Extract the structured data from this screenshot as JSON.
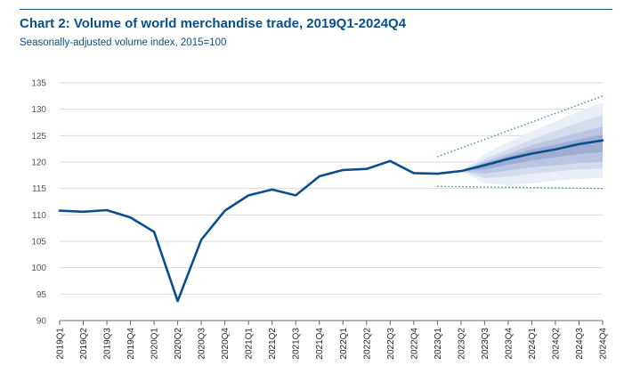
{
  "chart_data": {
    "type": "line",
    "title": "Chart 2: Volume of world merchandise trade, 2019Q1-2024Q4",
    "subtitle": "Seasonally-adjusted volume index, 2015=100",
    "xlabel": "",
    "ylabel": "",
    "ylim": [
      90,
      135
    ],
    "yticks": [
      90,
      95,
      100,
      105,
      110,
      115,
      120,
      125,
      130,
      135
    ],
    "grid": true,
    "categories": [
      "2019Q1",
      "2019Q2",
      "2019Q3",
      "2019Q4",
      "2020Q1",
      "2020Q2",
      "2020Q3",
      "2020Q4",
      "2021Q1",
      "2021Q2",
      "2021Q3",
      "2021Q4",
      "2022Q1",
      "2022Q2",
      "2022Q3",
      "2022Q4",
      "2023Q1",
      "2023Q2",
      "2023Q3",
      "2023Q4",
      "2024Q1",
      "2024Q2",
      "2024Q3",
      "2024Q4"
    ],
    "series": [
      {
        "values": [
          110.8,
          110.6,
          110.9,
          109.5,
          106.8,
          93.7,
          105.3,
          110.8,
          113.7,
          114.8,
          113.7,
          117.3,
          118.5,
          118.7,
          120.2,
          117.9,
          117.8,
          118.3,
          119.4,
          120.6,
          121.6,
          122.4,
          123.4,
          124.1
        ]
      }
    ],
    "fan_chart": {
      "start": "2023Q2",
      "bands": [
        {
          "color": "#eaeef7",
          "lower": [
            118.3,
            116.0,
            115.6,
            116.0,
            116.5,
            116.8,
            117.0
          ],
          "upper": [
            118.3,
            121.5,
            123.8,
            125.8,
            127.7,
            129.6,
            131.3
          ]
        },
        {
          "color": "#d3dbed",
          "lower": [
            118.3,
            117.0,
            117.2,
            117.8,
            118.2,
            118.6,
            118.8
          ],
          "upper": [
            118.3,
            120.6,
            122.4,
            124.3,
            125.9,
            127.5,
            128.9
          ]
        },
        {
          "color": "#b9c5e1",
          "lower": [
            118.3,
            117.8,
            118.4,
            119.0,
            119.4,
            119.8,
            120.0
          ],
          "upper": [
            118.3,
            120.1,
            121.6,
            123.2,
            124.4,
            125.6,
            126.7
          ]
        },
        {
          "color": "#9eaed3",
          "lower": [
            118.3,
            118.6,
            119.5,
            120.3,
            120.9,
            121.5,
            121.9
          ],
          "upper": [
            118.3,
            119.8,
            121.1,
            122.4,
            123.3,
            124.3,
            125.2
          ]
        }
      ],
      "dotted_upper": {
        "x": [
          "2023Q1",
          "2024Q4"
        ],
        "values": [
          121.0,
          132.5
        ]
      },
      "dotted_lower": {
        "x": [
          "2023Q1",
          "2024Q4"
        ],
        "values": [
          115.4,
          115.0
        ]
      }
    }
  },
  "colors": {
    "line": "#0b4f8a",
    "dotted": "#2e9a7a",
    "title": "#0b4f8a",
    "grid": "#d9d9d9"
  }
}
